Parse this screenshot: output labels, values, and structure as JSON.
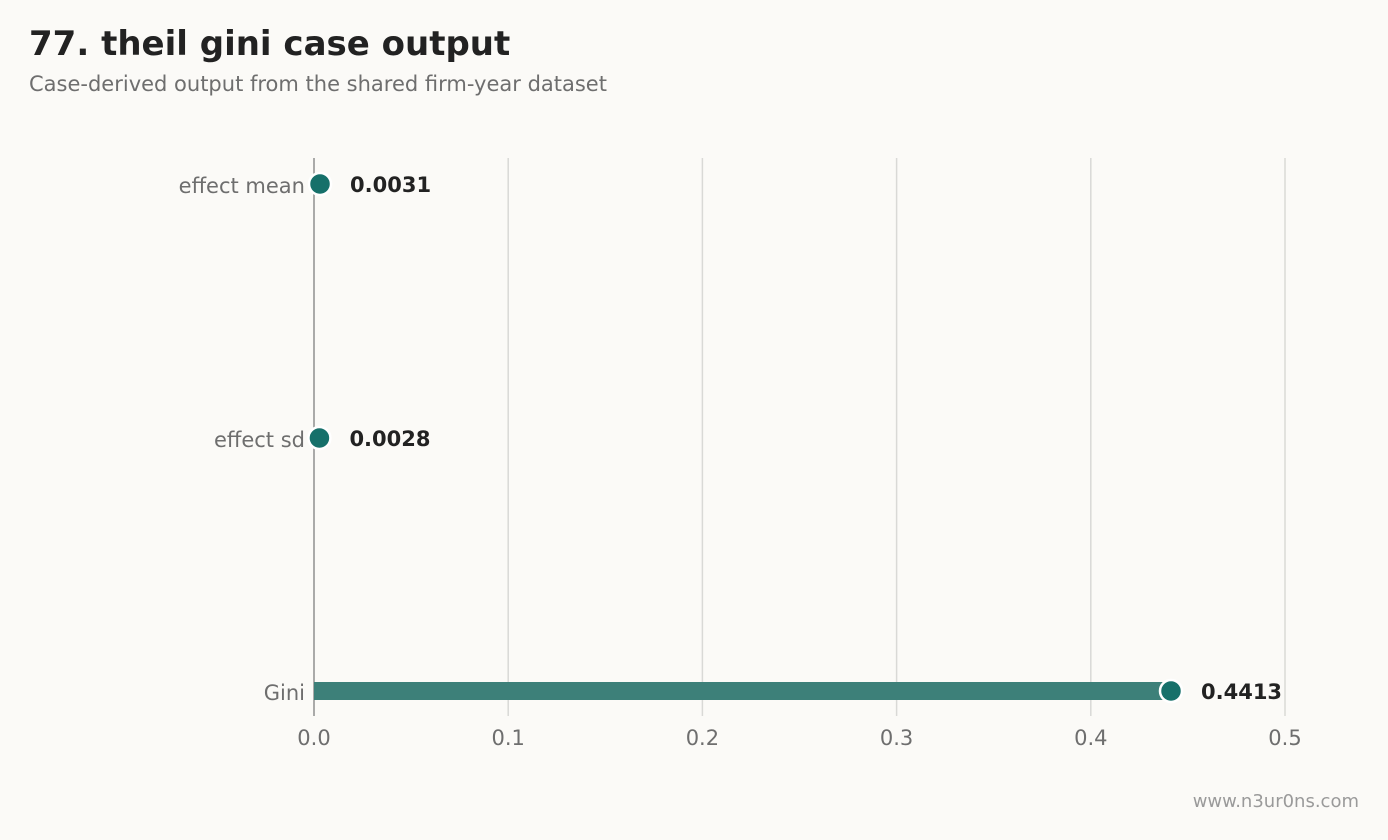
{
  "header": {
    "title": "77. theil gini case output",
    "subtitle": "Case-derived output from the shared firm-year dataset"
  },
  "footer": {
    "credit": "www.n3ur0ns.com"
  },
  "colors": {
    "accent": "#16706a",
    "bar": "#3d8079",
    "grid": "#d9d9d6",
    "axis": "#8f8f8f",
    "label_text": "#6e6e6e",
    "value_text": "#222222",
    "background": "#fbfaf7"
  },
  "chart_data": {
    "type": "bar",
    "orientation": "horizontal",
    "style": "lollipop",
    "categories": [
      "effect mean",
      "effect sd",
      "Gini"
    ],
    "values": [
      0.0031,
      0.0028,
      0.4413
    ],
    "value_labels": [
      "0.0031",
      "0.0028",
      "0.4413"
    ],
    "xlim": [
      0,
      0.5
    ],
    "xticks": [
      0.0,
      0.1,
      0.2,
      0.3,
      0.4,
      0.5
    ],
    "xtick_labels": [
      "0.0",
      "0.1",
      "0.2",
      "0.3",
      "0.4",
      "0.5"
    ],
    "grid": true,
    "legend": false
  }
}
